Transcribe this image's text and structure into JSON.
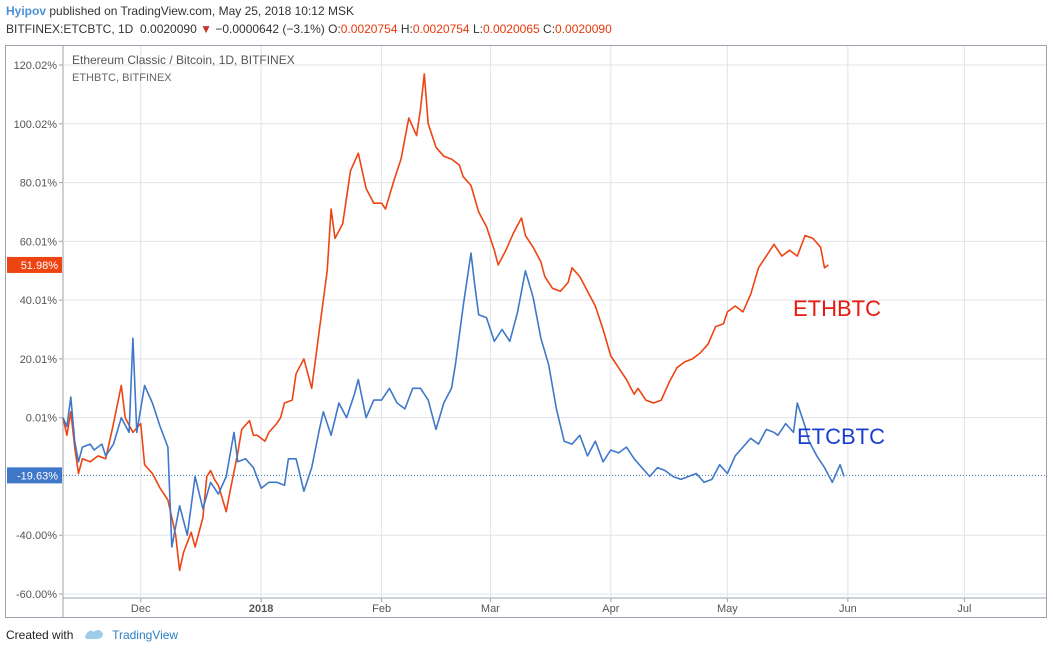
{
  "header": {
    "author": "Hyipov",
    "published_text": "published on TradingView.com, May 25, 2018 10:12 MSK",
    "symbol": "BITFINEX:ETCBTC, 1D",
    "last": "0.0020090",
    "change": "−0.0000642 (−3.1%)",
    "o_label": "O:",
    "o_value": "0.0020754",
    "h_label": "H:",
    "h_value": "0.0020754",
    "l_label": "L:",
    "l_value": "0.0020065",
    "c_label": "C:",
    "c_value": "0.0020090"
  },
  "footer": {
    "created_with": "Created with",
    "brand": "TradingView"
  },
  "colors": {
    "eth": "#ee4411",
    "etc": "#3f78c8",
    "axis_text": "#555555",
    "grid": "#e0e3eb"
  },
  "chart_data": {
    "type": "line",
    "legend": [
      "Ethereum Classic / Bitcoin, 1D, BITFINEX",
      "ETHBTC, BITFINEX"
    ],
    "y_ticks": [
      "120.02%",
      "100.02%",
      "80.01%",
      "60.01%",
      "40.01%",
      "20.01%",
      "0.01%",
      "-40.00%",
      "-60.00%"
    ],
    "y_tick_values": [
      120.02,
      100.02,
      80.01,
      60.01,
      40.01,
      20.01,
      0.01,
      -40.0,
      -60.0
    ],
    "ylim": [
      -60,
      125
    ],
    "x_ticks": [
      "Dec",
      "2018",
      "Feb",
      "Mar",
      "Apr",
      "May",
      "Jun",
      "Jul"
    ],
    "x_tick_dates": [
      "2017-12-01",
      "2018-01-01",
      "2018-02-01",
      "2018-03-01",
      "2018-04-01",
      "2018-05-01",
      "2018-06-01",
      "2018-07-01"
    ],
    "xlim": [
      "2017-11-11",
      "2018-07-22"
    ],
    "last_value_labels": {
      "eth": "51.98%",
      "etc": "-19.63%"
    },
    "annotations": [
      "ETHBTC",
      "ETCBTC"
    ],
    "series": [
      {
        "name": "ETHBTC",
        "color": "#ee4411",
        "points": [
          [
            "2017-11-11",
            0
          ],
          [
            "2017-11-12",
            -6
          ],
          [
            "2017-11-13",
            2
          ],
          [
            "2017-11-14",
            -10
          ],
          [
            "2017-11-15",
            -19
          ],
          [
            "2017-11-16",
            -14
          ],
          [
            "2017-11-18",
            -15
          ],
          [
            "2017-11-20",
            -13
          ],
          [
            "2017-11-22",
            -14
          ],
          [
            "2017-11-24",
            -2
          ],
          [
            "2017-11-26",
            11
          ],
          [
            "2017-11-27",
            0
          ],
          [
            "2017-11-29",
            -5
          ],
          [
            "2017-12-01",
            -2
          ],
          [
            "2017-12-02",
            -16
          ],
          [
            "2017-12-04",
            -19
          ],
          [
            "2017-12-06",
            -24
          ],
          [
            "2017-12-08",
            -28
          ],
          [
            "2017-12-10",
            -40
          ],
          [
            "2017-12-11",
            -52
          ],
          [
            "2017-12-12",
            -46
          ],
          [
            "2017-12-14",
            -39
          ],
          [
            "2017-12-15",
            -44
          ],
          [
            "2017-12-17",
            -34
          ],
          [
            "2017-12-18",
            -20
          ],
          [
            "2017-12-19",
            -18
          ],
          [
            "2017-12-20",
            -21
          ],
          [
            "2017-12-21",
            -23
          ],
          [
            "2017-12-23",
            -32
          ],
          [
            "2017-12-24",
            -25
          ],
          [
            "2017-12-26",
            -12
          ],
          [
            "2017-12-27",
            -4
          ],
          [
            "2017-12-29",
            -1
          ],
          [
            "2017-12-30",
            -6
          ],
          [
            "2017-12-31",
            -6
          ],
          [
            "2018-01-02",
            -8
          ],
          [
            "2018-01-03",
            -5
          ],
          [
            "2018-01-05",
            -2
          ],
          [
            "2018-01-06",
            0
          ],
          [
            "2018-01-07",
            5
          ],
          [
            "2018-01-09",
            6
          ],
          [
            "2018-01-10",
            15
          ],
          [
            "2018-01-12",
            20
          ],
          [
            "2018-01-14",
            10
          ],
          [
            "2018-01-16",
            30
          ],
          [
            "2018-01-18",
            50
          ],
          [
            "2018-01-19",
            71
          ],
          [
            "2018-01-20",
            61
          ],
          [
            "2018-01-22",
            66
          ],
          [
            "2018-01-24",
            84
          ],
          [
            "2018-01-26",
            90
          ],
          [
            "2018-01-28",
            78
          ],
          [
            "2018-01-30",
            73
          ],
          [
            "2018-02-01",
            73
          ],
          [
            "2018-02-02",
            71
          ],
          [
            "2018-02-04",
            80
          ],
          [
            "2018-02-06",
            88
          ],
          [
            "2018-02-08",
            102
          ],
          [
            "2018-02-10",
            96
          ],
          [
            "2018-02-11",
            105
          ],
          [
            "2018-02-12",
            117
          ],
          [
            "2018-02-13",
            100
          ],
          [
            "2018-02-15",
            92
          ],
          [
            "2018-02-17",
            89
          ],
          [
            "2018-02-19",
            88
          ],
          [
            "2018-02-21",
            86
          ],
          [
            "2018-02-22",
            82
          ],
          [
            "2018-02-24",
            79
          ],
          [
            "2018-02-26",
            70
          ],
          [
            "2018-02-28",
            65
          ],
          [
            "2018-03-02",
            57
          ],
          [
            "2018-03-03",
            52
          ],
          [
            "2018-03-05",
            57
          ],
          [
            "2018-03-07",
            63
          ],
          [
            "2018-03-09",
            68
          ],
          [
            "2018-03-10",
            62
          ],
          [
            "2018-03-12",
            58
          ],
          [
            "2018-03-14",
            53
          ],
          [
            "2018-03-15",
            48
          ],
          [
            "2018-03-17",
            44
          ],
          [
            "2018-03-19",
            43
          ],
          [
            "2018-03-21",
            46
          ],
          [
            "2018-03-22",
            51
          ],
          [
            "2018-03-24",
            48
          ],
          [
            "2018-03-26",
            43
          ],
          [
            "2018-03-28",
            38
          ],
          [
            "2018-03-30",
            30
          ],
          [
            "2018-04-01",
            21
          ],
          [
            "2018-04-03",
            17
          ],
          [
            "2018-04-05",
            13
          ],
          [
            "2018-04-07",
            8
          ],
          [
            "2018-04-08",
            10
          ],
          [
            "2018-04-10",
            6
          ],
          [
            "2018-04-12",
            5
          ],
          [
            "2018-04-14",
            6
          ],
          [
            "2018-04-16",
            12
          ],
          [
            "2018-04-18",
            17
          ],
          [
            "2018-04-20",
            19
          ],
          [
            "2018-04-22",
            20
          ],
          [
            "2018-04-24",
            22
          ],
          [
            "2018-04-26",
            25
          ],
          [
            "2018-04-28",
            31
          ],
          [
            "2018-04-30",
            32
          ],
          [
            "2018-05-01",
            36
          ],
          [
            "2018-05-03",
            38
          ],
          [
            "2018-05-05",
            36
          ],
          [
            "2018-05-07",
            42
          ],
          [
            "2018-05-09",
            51
          ],
          [
            "2018-05-11",
            55
          ],
          [
            "2018-05-13",
            59
          ],
          [
            "2018-05-15",
            55
          ],
          [
            "2018-05-17",
            57
          ],
          [
            "2018-05-19",
            55
          ],
          [
            "2018-05-21",
            62
          ],
          [
            "2018-05-23",
            61
          ],
          [
            "2018-05-25",
            58
          ],
          [
            "2018-05-26",
            51
          ],
          [
            "2018-05-27",
            52
          ]
        ]
      },
      {
        "name": "ETCBTC",
        "color": "#3f78c8",
        "points": [
          [
            "2017-11-11",
            0
          ],
          [
            "2017-11-12",
            -3
          ],
          [
            "2017-11-13",
            7
          ],
          [
            "2017-11-14",
            -8
          ],
          [
            "2017-11-15",
            -15
          ],
          [
            "2017-11-16",
            -10
          ],
          [
            "2017-11-18",
            -9
          ],
          [
            "2017-11-19",
            -11
          ],
          [
            "2017-11-21",
            -9
          ],
          [
            "2017-11-22",
            -13
          ],
          [
            "2017-11-24",
            -9
          ],
          [
            "2017-11-26",
            0
          ],
          [
            "2017-11-28",
            -5
          ],
          [
            "2017-11-29",
            27
          ],
          [
            "2017-11-30",
            -5
          ],
          [
            "2017-12-02",
            11
          ],
          [
            "2017-12-04",
            5
          ],
          [
            "2017-12-06",
            -3
          ],
          [
            "2017-12-08",
            -10
          ],
          [
            "2017-12-09",
            -44
          ],
          [
            "2017-12-11",
            -30
          ],
          [
            "2017-12-13",
            -40
          ],
          [
            "2017-12-15",
            -20
          ],
          [
            "2017-12-17",
            -31
          ],
          [
            "2017-12-19",
            -22
          ],
          [
            "2017-12-21",
            -26
          ],
          [
            "2017-12-23",
            -20
          ],
          [
            "2017-12-25",
            -5
          ],
          [
            "2017-12-26",
            -15
          ],
          [
            "2017-12-28",
            -14
          ],
          [
            "2017-12-30",
            -17
          ],
          [
            "2018-01-01",
            -24
          ],
          [
            "2018-01-03",
            -22
          ],
          [
            "2018-01-05",
            -22
          ],
          [
            "2018-01-07",
            -23
          ],
          [
            "2018-01-08",
            -14
          ],
          [
            "2018-01-10",
            -14
          ],
          [
            "2018-01-12",
            -25
          ],
          [
            "2018-01-14",
            -17
          ],
          [
            "2018-01-16",
            -4
          ],
          [
            "2018-01-17",
            2
          ],
          [
            "2018-01-19",
            -6
          ],
          [
            "2018-01-21",
            5
          ],
          [
            "2018-01-23",
            0
          ],
          [
            "2018-01-25",
            8
          ],
          [
            "2018-01-26",
            13
          ],
          [
            "2018-01-28",
            0
          ],
          [
            "2018-01-30",
            6
          ],
          [
            "2018-02-01",
            6
          ],
          [
            "2018-02-03",
            10
          ],
          [
            "2018-02-05",
            5
          ],
          [
            "2018-02-07",
            3
          ],
          [
            "2018-02-09",
            10
          ],
          [
            "2018-02-11",
            10
          ],
          [
            "2018-02-13",
            6
          ],
          [
            "2018-02-15",
            -4
          ],
          [
            "2018-02-17",
            5
          ],
          [
            "2018-02-19",
            10
          ],
          [
            "2018-02-20",
            18
          ],
          [
            "2018-02-22",
            38
          ],
          [
            "2018-02-24",
            56
          ],
          [
            "2018-02-25",
            45
          ],
          [
            "2018-02-26",
            35
          ],
          [
            "2018-02-28",
            34
          ],
          [
            "2018-03-02",
            26
          ],
          [
            "2018-03-04",
            30
          ],
          [
            "2018-03-06",
            26
          ],
          [
            "2018-03-08",
            36
          ],
          [
            "2018-03-10",
            50
          ],
          [
            "2018-03-12",
            41
          ],
          [
            "2018-03-14",
            27
          ],
          [
            "2018-03-16",
            18
          ],
          [
            "2018-03-18",
            3
          ],
          [
            "2018-03-20",
            -8
          ],
          [
            "2018-03-22",
            -9
          ],
          [
            "2018-03-24",
            -6
          ],
          [
            "2018-03-26",
            -13
          ],
          [
            "2018-03-28",
            -8
          ],
          [
            "2018-03-30",
            -15
          ],
          [
            "2018-04-01",
            -11
          ],
          [
            "2018-04-03",
            -12
          ],
          [
            "2018-04-05",
            -10
          ],
          [
            "2018-04-07",
            -14
          ],
          [
            "2018-04-09",
            -17
          ],
          [
            "2018-04-11",
            -20
          ],
          [
            "2018-04-13",
            -17
          ],
          [
            "2018-04-15",
            -18
          ],
          [
            "2018-04-17",
            -20
          ],
          [
            "2018-04-19",
            -21
          ],
          [
            "2018-04-21",
            -20
          ],
          [
            "2018-04-23",
            -19
          ],
          [
            "2018-04-25",
            -22
          ],
          [
            "2018-04-27",
            -21
          ],
          [
            "2018-04-29",
            -16
          ],
          [
            "2018-05-01",
            -19
          ],
          [
            "2018-05-03",
            -13
          ],
          [
            "2018-05-05",
            -10
          ],
          [
            "2018-05-07",
            -7
          ],
          [
            "2018-05-09",
            -9
          ],
          [
            "2018-05-11",
            -4
          ],
          [
            "2018-05-13",
            -5
          ],
          [
            "2018-05-14",
            -6
          ],
          [
            "2018-05-16",
            -2
          ],
          [
            "2018-05-18",
            -5
          ],
          [
            "2018-05-19",
            5
          ],
          [
            "2018-05-21",
            -3
          ],
          [
            "2018-05-22",
            -8
          ],
          [
            "2018-05-24",
            -13
          ],
          [
            "2018-05-26",
            -17
          ],
          [
            "2018-05-28",
            -22
          ],
          [
            "2018-05-30",
            -16
          ],
          [
            "2018-05-31",
            -20
          ]
        ]
      }
    ]
  }
}
